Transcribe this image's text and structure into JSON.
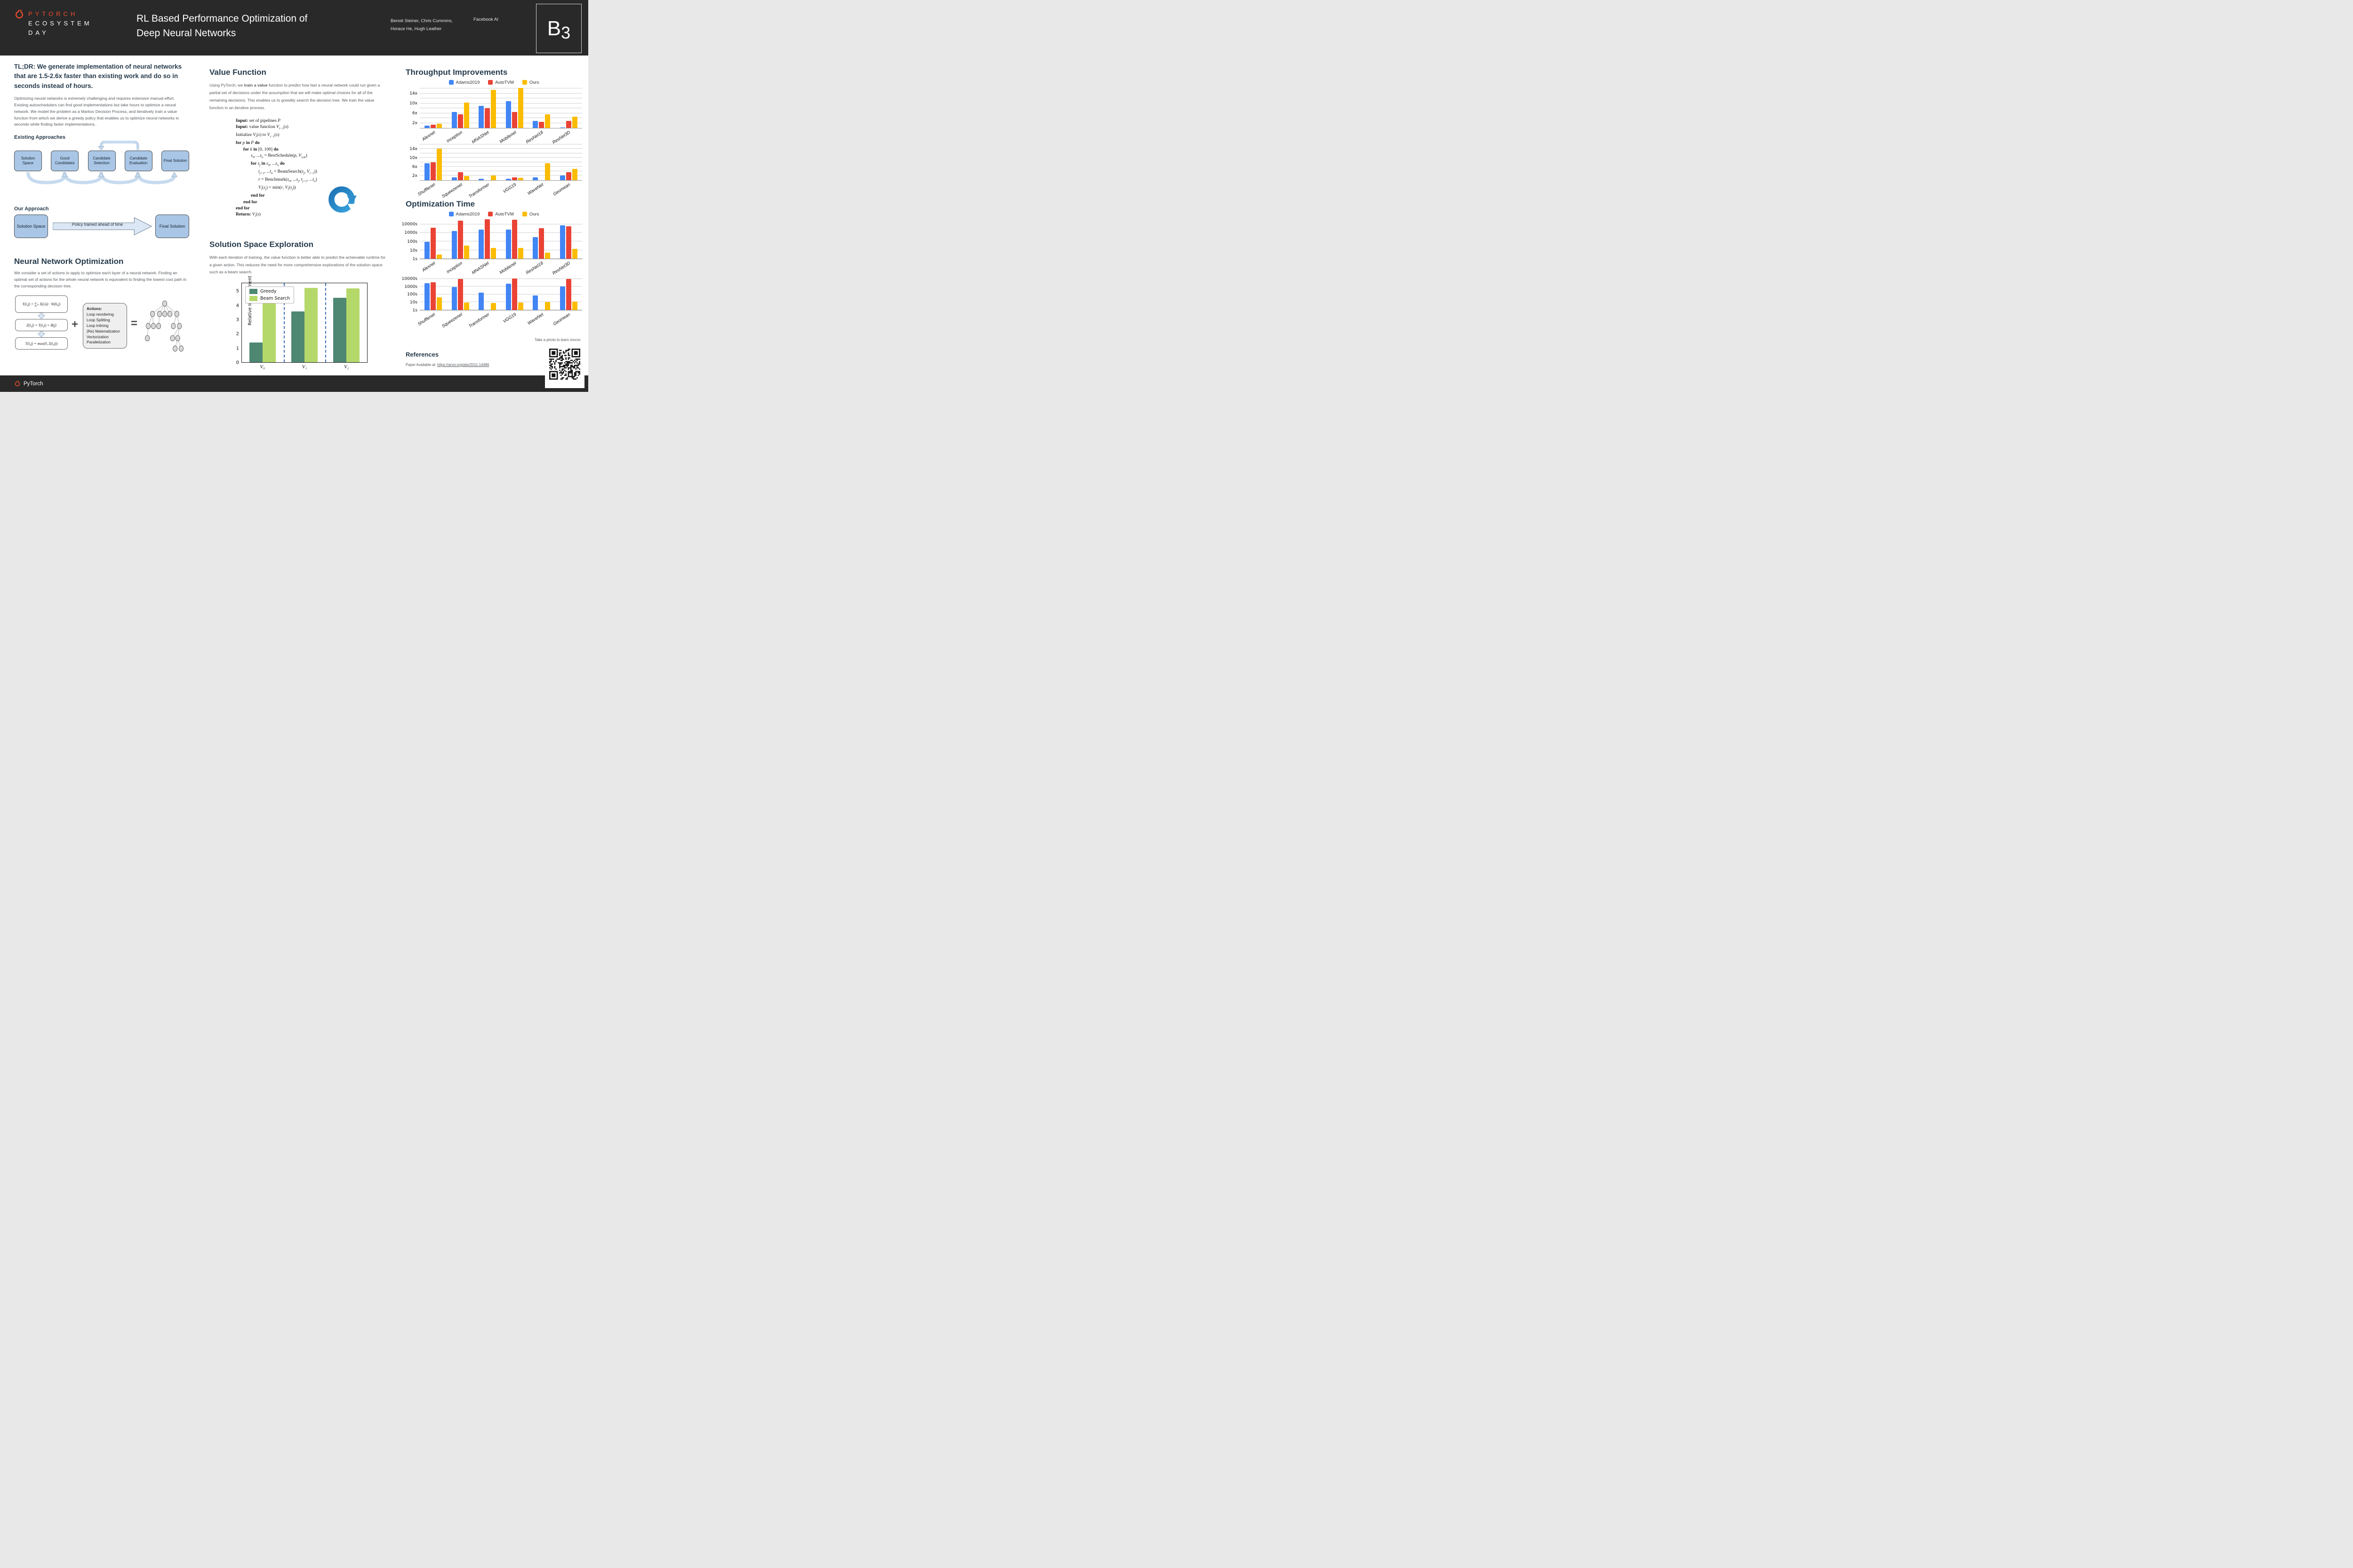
{
  "header": {
    "brand_line1": "PYTORCH",
    "brand_line2": "ECOSYSTEM",
    "brand_line3": "DAY",
    "title_line1": "RL Based Performance Optimization of",
    "title_line2": "Deep Neural Networks",
    "authors_line1": "Benoit Steiner, Chris Cummins,",
    "authors_line2": "Horace He, Hugh Leather",
    "affiliation": "Facebook AI",
    "badge_letter": "B",
    "badge_number": "3"
  },
  "footer": {
    "brand": "PyTorch"
  },
  "left": {
    "tldr": "TL;DR: We generate implementation of neural networks that are 1.5-2.6x faster than existing work and do so in seconds instead of hours.",
    "intro": "Optimizing neural networks is extremely challenging and requires extensive manual effort. Existing autoschedulers can find good implementations but take hours to optimize a neural network. We model the problem as a Markov Decision Process, and iteratively train a value function from which we derive a greedy policy that enables us to optimize neural networks in seconds while finding faster implementations..",
    "existing_label": "Existing Approaches",
    "existing_boxes": [
      "Solution Space",
      "Good Candidates",
      "Candidate Selection",
      "Candidate Evaluation",
      "Final Solution"
    ],
    "our_label": "Our Approach",
    "our_box_left": "Solution Space",
    "our_box_right": "Final Solution",
    "our_arrow_label": "Policy trained ahead of time",
    "nno_title": "Neural Network Optimization",
    "nno_text": "We consider a set of actions to apply to optimize each layer of a neural network. Finding an optimal set of actions for the whole neural network is equivalent to finding the lowest cost path in the corresponding decision tree.",
    "equations": [
      "Y(i,j) = ∑ₖ X(i,k) · W(k,j)",
      "Z(i,j) = Y(i,j) + B(j)",
      "T(i,j) = max(0, Z(i,j))"
    ],
    "plus_sign": "+",
    "equals_sign": "=",
    "actions_title": "Actions:",
    "actions": [
      "Loop reordering",
      "Loop Splitting",
      "Loop Inlining",
      "(Re) Materialization",
      "Vectorization",
      "Parallelization"
    ]
  },
  "middle": {
    "vf_title": "Value Function",
    "vf_parts": [
      {
        "t": "Using PyTorch, we "
      },
      {
        "t": "train a value",
        "b": 1
      },
      {
        "t": " function to predict how fast a neural network could run  given a partial set of decisions under the "
      },
      {
        "t": "assumption",
        "it": 1
      },
      {
        "t": " that we will make optimal choices for all of the remaining decisions. This enables us to greedily search the decision tree. We train the value function in  an iterative process."
      }
    ],
    "pseudocode": [
      {
        "i": 0,
        "p": [
          {
            "t": "Input:",
            "b": 1
          },
          {
            "t": " set of pipelines "
          },
          {
            "t": "P",
            "it": 1
          }
        ]
      },
      {
        "i": 0,
        "p": [
          {
            "t": "Input:",
            "b": 1
          },
          {
            "t": " value function "
          },
          {
            "t": "V",
            "it": 1
          },
          {
            "t": "i−1",
            "sub": 1
          },
          {
            "t": "("
          },
          {
            "t": "s",
            "it": 1
          },
          {
            "t": ")"
          }
        ]
      },
      {
        "i": 0,
        "p": [
          {
            "t": "Initialize "
          },
          {
            "t": "V",
            "it": 1
          },
          {
            "t": "i",
            "sub": 1
          },
          {
            "t": "("
          },
          {
            "t": "s",
            "it": 1
          },
          {
            "t": ") to "
          },
          {
            "t": "V",
            "it": 1
          },
          {
            "t": "i−1",
            "sub": 1
          },
          {
            "t": "("
          },
          {
            "t": "s",
            "it": 1
          },
          {
            "t": ")"
          }
        ]
      },
      {
        "i": 0,
        "p": [
          {
            "t": "for",
            "b": 1
          },
          {
            "t": " "
          },
          {
            "t": "p",
            "it": 1
          },
          {
            "t": " "
          },
          {
            "t": "in",
            "b": 1
          },
          {
            "t": " "
          },
          {
            "t": "P",
            "it": 1
          },
          {
            "t": " "
          },
          {
            "t": "do",
            "b": 1
          }
        ]
      },
      {
        "i": 1,
        "p": [
          {
            "t": "for",
            "b": 1
          },
          {
            "t": " "
          },
          {
            "t": "k",
            "it": 1
          },
          {
            "t": " "
          },
          {
            "t": "in",
            "b": 1
          },
          {
            "t": " [0, 100] "
          },
          {
            "t": "do",
            "b": 1
          }
        ]
      },
      {
        "i": 2,
        "p": [
          {
            "t": "s",
            "it": 1
          },
          {
            "t": "0",
            "sub": 1
          },
          {
            "t": ", ..."
          },
          {
            "t": "s",
            "it": 1
          },
          {
            "t": "n",
            "sub": 1
          },
          {
            "t": " = BestSchedule("
          },
          {
            "t": "p",
            "it": 1
          },
          {
            "t": ", "
          },
          {
            "t": "V",
            "it": 1
          },
          {
            "t": "i,ϵk",
            "sub": 1
          },
          {
            "t": ")"
          }
        ]
      },
      {
        "i": 2,
        "p": [
          {
            "t": "for",
            "b": 1
          },
          {
            "t": " "
          },
          {
            "t": "s",
            "it": 1
          },
          {
            "t": "j",
            "sub": 1
          },
          {
            "t": " "
          },
          {
            "t": "in",
            "b": 1
          },
          {
            "t": " "
          },
          {
            "t": "s",
            "it": 1
          },
          {
            "t": "0",
            "sub": 1
          },
          {
            "t": ", ..."
          },
          {
            "t": "s",
            "it": 1
          },
          {
            "t": "n",
            "sub": 1
          },
          {
            "t": " "
          },
          {
            "t": "do",
            "b": 1
          }
        ]
      },
      {
        "i": 3,
        "p": [
          {
            "t": "t",
            "it": 1
          },
          {
            "t": "j+1",
            "sub": 1
          },
          {
            "t": ", ..."
          },
          {
            "t": "t",
            "it": 1
          },
          {
            "t": "n",
            "sub": 1
          },
          {
            "t": " = BeamSearch("
          },
          {
            "t": "s",
            "it": 1
          },
          {
            "t": "j",
            "sub": 1
          },
          {
            "t": ", "
          },
          {
            "t": "V",
            "it": 1
          },
          {
            "t": "i−1",
            "sub": 1
          },
          {
            "t": "))"
          }
        ]
      },
      {
        "i": 3,
        "p": [
          {
            "t": "r",
            "it": 1
          },
          {
            "t": " = Benchmark("
          },
          {
            "t": "s",
            "it": 1
          },
          {
            "t": "0",
            "sub": 1
          },
          {
            "t": ", ..."
          },
          {
            "t": "s",
            "it": 1
          },
          {
            "t": "j",
            "sub": 1
          },
          {
            "t": ", "
          },
          {
            "t": "t",
            "it": 1
          },
          {
            "t": "j+1",
            "sub": 1
          },
          {
            "t": ", ..."
          },
          {
            "t": "t",
            "it": 1
          },
          {
            "t": "n",
            "sub": 1
          },
          {
            "t": ")"
          }
        ]
      },
      {
        "i": 3,
        "p": [
          {
            "t": "V",
            "it": 1
          },
          {
            "t": "i",
            "sub": 1
          },
          {
            "t": "("
          },
          {
            "t": "s",
            "it": 1
          },
          {
            "t": "j",
            "sub": 1
          },
          {
            "t": ") = min("
          },
          {
            "t": "r",
            "it": 1
          },
          {
            "t": ", "
          },
          {
            "t": "V",
            "it": 1
          },
          {
            "t": "i",
            "sub": 1
          },
          {
            "t": "("
          },
          {
            "t": "s",
            "it": 1
          },
          {
            "t": "j",
            "sub": 1
          },
          {
            "t": "))"
          }
        ]
      },
      {
        "i": 2,
        "p": [
          {
            "t": "end for",
            "b": 1
          }
        ]
      },
      {
        "i": 1,
        "p": [
          {
            "t": "end for",
            "b": 1
          }
        ]
      },
      {
        "i": 0,
        "p": [
          {
            "t": "end for",
            "b": 1
          }
        ]
      },
      {
        "i": 0,
        "p": [
          {
            "t": "Return:",
            "b": 1
          },
          {
            "t": " "
          },
          {
            "t": "V",
            "it": 1
          },
          {
            "t": "i",
            "sub": 1
          },
          {
            "t": "("
          },
          {
            "t": "s",
            "it": 1
          },
          {
            "t": ")"
          }
        ]
      }
    ],
    "sse_title": "Solution Space Exploration",
    "sse_text": "With each iteration of training, the value function is better able to predict the achievable runtime for a given action. This reduces the need for more comprehensive explorations of the solution space  such as a beam search."
  },
  "right": {
    "ti_title": "Throughput Improvements",
    "ot_title": "Optimization Time",
    "references_title": "References",
    "paper_prefix": "Paper Available at: ",
    "paper_link": "https://arxiv.org/abs/2011.14486",
    "qr_caption": "Take a photo to learn mocre:"
  },
  "chart_data": [
    {
      "id": "exploration",
      "type": "bar",
      "scale": "linear",
      "title": "",
      "xlabel": "",
      "ylabel": "Relative Improvement",
      "categories": [
        "V₀",
        "V₁",
        "V₂"
      ],
      "series": [
        {
          "name": "Greedy",
          "color": "#4e8872",
          "values": [
            1.4,
            3.6,
            4.55
          ]
        },
        {
          "name": "Beam Search",
          "color": "#b5d86a",
          "values": [
            4.15,
            5.25,
            5.22
          ]
        }
      ],
      "ylim": [
        0,
        5.6
      ],
      "ymax": 5.6,
      "gridlines": [],
      "yticks": [
        {
          "v": 0,
          "label": "0"
        },
        {
          "v": 1,
          "label": "1"
        },
        {
          "v": 2,
          "label": "2"
        },
        {
          "v": 3,
          "label": "3"
        },
        {
          "v": 4,
          "label": "4"
        },
        {
          "v": 5,
          "label": "5"
        }
      ],
      "legend": "inside",
      "legend_position": "top-left",
      "separators": true,
      "rotate_x": false,
      "grid": "off"
    },
    {
      "id": "throughput-top",
      "type": "bar",
      "scale": "linear",
      "title": "Throughput Improvements (part 1)",
      "categories": [
        "Alexnet",
        "Inception",
        "MNASNet",
        "Mobilenet",
        "ResNet18",
        "ResNet3D"
      ],
      "series": [
        {
          "name": "Adams2019",
          "color": "#4285F4",
          "values": [
            1.0,
            6.4,
            8.9,
            10.9,
            2.9,
            0.2
          ]
        },
        {
          "name": "AutoTVM",
          "color": "#EA4335",
          "values": [
            1.4,
            5.5,
            8.0,
            6.4,
            2.4,
            2.9
          ]
        },
        {
          "name": "Ours",
          "color": "#FBBC04",
          "values": [
            1.8,
            10.4,
            15.4,
            16.3,
            5.5,
            4.5
          ]
        }
      ],
      "ylim": [
        0,
        16.8
      ],
      "ymax": 16.8,
      "gridlines": [
        2,
        4,
        6,
        8,
        10,
        12,
        14,
        16
      ],
      "yticks": [
        {
          "v": 2,
          "label": "2x"
        },
        {
          "v": 6,
          "label": "6x"
        },
        {
          "v": 10,
          "label": "10x"
        },
        {
          "v": 14,
          "label": "14x"
        }
      ],
      "legend": "top",
      "separators": false,
      "rotate_x": true,
      "grid": "on"
    },
    {
      "id": "throughput-bottom",
      "type": "bar",
      "scale": "linear",
      "title": "Throughput Improvements (part 2)",
      "categories": [
        "Shufflenet",
        "Squeezenet",
        "Transformer",
        "VGG19",
        "WaveNet",
        "Geomean"
      ],
      "series": [
        {
          "name": "Adams2019",
          "color": "#4285F4",
          "values": [
            7.6,
            1.2,
            0.7,
            0.6,
            1.2,
            2.0
          ]
        },
        {
          "name": "AutoTVM",
          "color": "#EA4335",
          "values": [
            8.0,
            3.5,
            0,
            1.2,
            0,
            3.5
          ]
        },
        {
          "name": "Ours",
          "color": "#FBBC04",
          "values": [
            14.1,
            1.8,
            2.0,
            1.0,
            7.6,
            5.0
          ]
        }
      ],
      "ylim": [
        0,
        16.8
      ],
      "ymax": 16.8,
      "gridlines": [
        2,
        4,
        6,
        8,
        10,
        12,
        14,
        16
      ],
      "yticks": [
        {
          "v": 2,
          "label": "2x"
        },
        {
          "v": 6,
          "label": "6x"
        },
        {
          "v": 10,
          "label": "10x"
        },
        {
          "v": 14,
          "label": "14x"
        }
      ],
      "legend": "none",
      "separators": false,
      "rotate_x": true,
      "grid": "on"
    },
    {
      "id": "opttime-top",
      "type": "bar",
      "scale": "log",
      "title": "Optimization Time (part 1)",
      "categories": [
        "Alexnet",
        "Inception",
        "MNASNet",
        "Mobilenet",
        "ResNet18",
        "ResNet3D"
      ],
      "series": [
        {
          "name": "Adams2019",
          "color": "#4285F4",
          "values": [
            90,
            1700,
            2600,
            2300,
            330,
            7500
          ]
        },
        {
          "name": "AutoTVM",
          "color": "#EA4335",
          "values": [
            4200,
            28000,
            40000,
            33000,
            3600,
            5800
          ]
        },
        {
          "name": "Ours",
          "color": "#FBBC04",
          "values": [
            3,
            35,
            19,
            19,
            5,
            14
          ]
        }
      ],
      "ylim": [
        1,
        50000
      ],
      "ymax": 50000,
      "gridlines": [
        1,
        10,
        100,
        1000,
        10000
      ],
      "yticks": [
        {
          "v": 1,
          "label": "1s"
        },
        {
          "v": 10,
          "label": "10s"
        },
        {
          "v": 100,
          "label": "100s"
        },
        {
          "v": 1000,
          "label": "1000s"
        },
        {
          "v": 10000,
          "label": "10000s"
        }
      ],
      "legend": "top",
      "separators": false,
      "rotate_x": true,
      "grid": "on"
    },
    {
      "id": "opttime-bottom",
      "type": "bar",
      "scale": "log",
      "title": "Optimization Time (part 2)",
      "categories": [
        "Shufflenet",
        "Squeezenet",
        "Transformer",
        "VGG19",
        "WaveNet",
        "Geomean"
      ],
      "series": [
        {
          "name": "Adams2019",
          "color": "#4285F4",
          "values": [
            2900,
            850,
            180,
            2400,
            70,
            1000
          ]
        },
        {
          "name": "AutoTVM",
          "color": "#EA4335",
          "values": [
            3600,
            10000,
            0,
            11000,
            0,
            10000
          ]
        },
        {
          "name": "Ours",
          "color": "#FBBC04",
          "values": [
            45,
            9.5,
            8.5,
            9.5,
            10.5,
            13
          ]
        }
      ],
      "ylim": [
        1,
        50000
      ],
      "ymax": 50000,
      "gridlines": [
        1,
        10,
        100,
        1000,
        10000
      ],
      "yticks": [
        {
          "v": 1,
          "label": "1s"
        },
        {
          "v": 10,
          "label": "10s"
        },
        {
          "v": 100,
          "label": "100s"
        },
        {
          "v": 1000,
          "label": "1000s"
        },
        {
          "v": 10000,
          "label": "10000s"
        }
      ],
      "legend": "none",
      "separators": false,
      "rotate_x": true,
      "grid": "on"
    }
  ]
}
